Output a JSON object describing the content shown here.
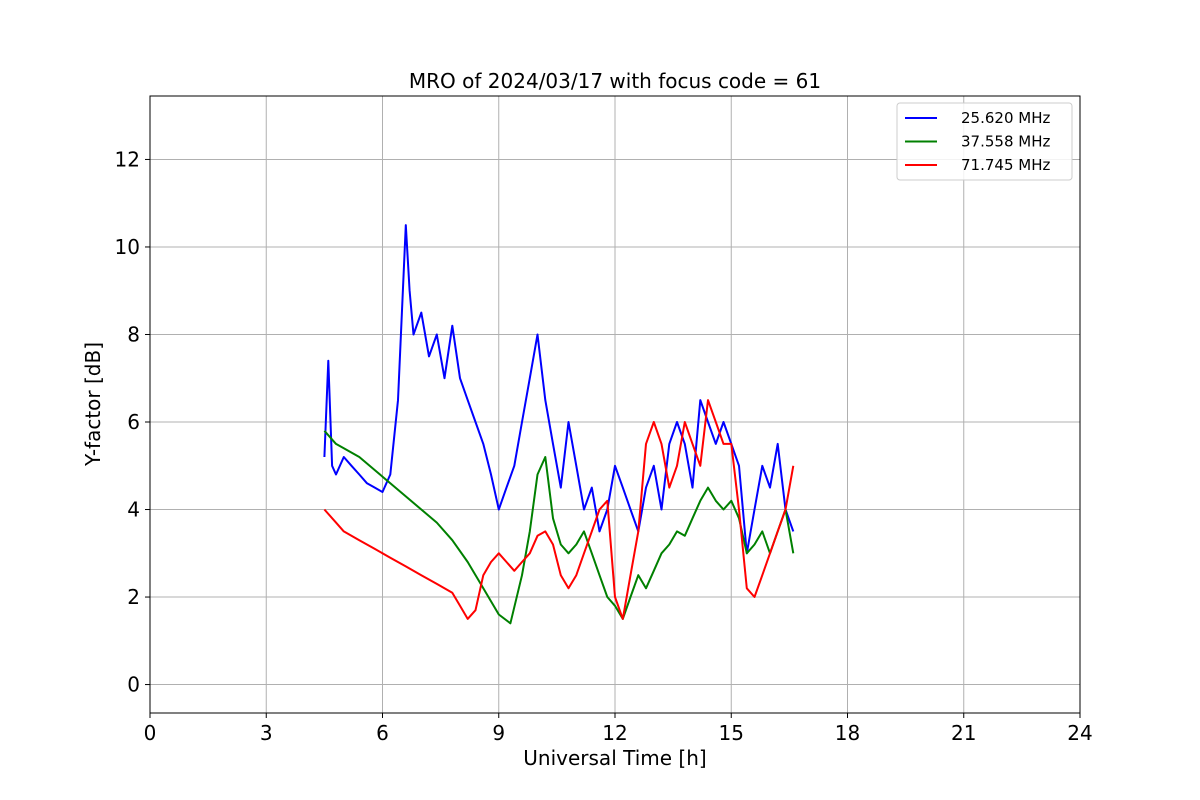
{
  "chart_data": {
    "type": "line",
    "title": "MRO of 2024/03/17 with focus code = 61",
    "xlabel": "Universal Time [h]",
    "ylabel": "Y-factor [dB]",
    "xlim": [
      0,
      24
    ],
    "ylim": [
      -0.65,
      13.45
    ],
    "xticks": [
      0,
      3,
      6,
      9,
      12,
      15,
      18,
      21,
      24
    ],
    "yticks": [
      0,
      2,
      4,
      6,
      8,
      10,
      12
    ],
    "grid": true,
    "legend_position": "top-right",
    "series": [
      {
        "name": "25.620 MHz",
        "color": "#0000ff",
        "x": [
          4.5,
          4.6,
          4.7,
          4.8,
          5.0,
          5.2,
          5.4,
          5.6,
          5.8,
          6.0,
          6.2,
          6.4,
          6.5,
          6.6,
          6.7,
          6.8,
          7.0,
          7.2,
          7.4,
          7.6,
          7.8,
          8.0,
          8.2,
          8.4,
          8.6,
          8.8,
          9.0,
          9.2,
          9.4,
          9.6,
          9.8,
          10.0,
          10.2,
          10.4,
          10.6,
          10.8,
          11.0,
          11.2,
          11.4,
          11.6,
          11.8,
          12.0,
          12.2,
          12.4,
          12.6,
          12.8,
          13.0,
          13.2,
          13.4,
          13.6,
          13.8,
          14.0,
          14.2,
          14.4,
          14.6,
          14.8,
          15.0,
          15.2,
          15.4,
          15.6,
          15.8,
          16.0,
          16.2,
          16.4,
          16.6
        ],
        "y": [
          5.2,
          7.4,
          5.0,
          4.8,
          5.2,
          5.0,
          4.8,
          4.6,
          4.5,
          4.4,
          4.8,
          6.5,
          8.5,
          10.5,
          9.0,
          8.0,
          8.5,
          7.5,
          8.0,
          7.0,
          8.2,
          7.0,
          6.5,
          6.0,
          5.5,
          4.8,
          4.0,
          4.5,
          5.0,
          6.0,
          7.0,
          8.0,
          6.5,
          5.5,
          4.5,
          6.0,
          5.0,
          4.0,
          4.5,
          3.5,
          4.0,
          5.0,
          4.5,
          4.0,
          3.5,
          4.5,
          5.0,
          4.0,
          5.5,
          6.0,
          5.5,
          4.5,
          6.5,
          6.0,
          5.5,
          6.0,
          5.5,
          5.0,
          3.0,
          4.0,
          5.0,
          4.5,
          5.5,
          4.0,
          3.5
        ]
      },
      {
        "name": "37.558 MHz",
        "color": "#008000",
        "x": [
          4.5,
          4.8,
          5.0,
          5.4,
          5.8,
          6.2,
          6.6,
          7.0,
          7.4,
          7.8,
          8.2,
          8.6,
          9.0,
          9.3,
          9.6,
          9.8,
          10.0,
          10.2,
          10.4,
          10.6,
          10.8,
          11.0,
          11.2,
          11.4,
          11.6,
          11.8,
          12.0,
          12.2,
          12.4,
          12.6,
          12.8,
          13.0,
          13.2,
          13.4,
          13.6,
          13.8,
          14.0,
          14.2,
          14.4,
          14.6,
          14.8,
          15.0,
          15.2,
          15.4,
          15.6,
          15.8,
          16.0,
          16.2,
          16.4,
          16.6
        ],
        "y": [
          5.8,
          5.5,
          5.4,
          5.2,
          4.9,
          4.6,
          4.3,
          4.0,
          3.7,
          3.3,
          2.8,
          2.2,
          1.6,
          1.4,
          2.5,
          3.5,
          4.8,
          5.2,
          3.8,
          3.2,
          3.0,
          3.2,
          3.5,
          3.0,
          2.5,
          2.0,
          1.8,
          1.5,
          2.0,
          2.5,
          2.2,
          2.6,
          3.0,
          3.2,
          3.5,
          3.4,
          3.8,
          4.2,
          4.5,
          4.2,
          4.0,
          4.2,
          3.8,
          3.0,
          3.2,
          3.5,
          3.0,
          3.5,
          4.0,
          3.0
        ]
      },
      {
        "name": "71.745 MHz",
        "color": "#ff0000",
        "x": [
          4.5,
          4.8,
          5.0,
          5.4,
          5.8,
          6.2,
          6.6,
          7.0,
          7.4,
          7.8,
          8.0,
          8.2,
          8.4,
          8.6,
          8.8,
          9.0,
          9.2,
          9.4,
          9.6,
          9.8,
          10.0,
          10.2,
          10.4,
          10.6,
          10.8,
          11.0,
          11.2,
          11.4,
          11.6,
          11.8,
          12.0,
          12.2,
          12.4,
          12.6,
          12.8,
          13.0,
          13.2,
          13.4,
          13.6,
          13.8,
          14.0,
          14.2,
          14.4,
          14.6,
          14.8,
          15.0,
          15.2,
          15.4,
          15.6,
          15.8,
          16.0,
          16.2,
          16.4,
          16.6
        ],
        "y": [
          4.0,
          3.7,
          3.5,
          3.3,
          3.1,
          2.9,
          2.7,
          2.5,
          2.3,
          2.1,
          1.8,
          1.5,
          1.7,
          2.5,
          2.8,
          3.0,
          2.8,
          2.6,
          2.8,
          3.0,
          3.4,
          3.5,
          3.2,
          2.5,
          2.2,
          2.5,
          3.0,
          3.5,
          4.0,
          4.2,
          2.0,
          1.5,
          2.5,
          3.5,
          5.5,
          6.0,
          5.5,
          4.5,
          5.0,
          6.0,
          5.5,
          5.0,
          6.5,
          6.0,
          5.5,
          5.5,
          4.0,
          2.2,
          2.0,
          2.5,
          3.0,
          3.5,
          4.0,
          5.0
        ]
      }
    ]
  }
}
